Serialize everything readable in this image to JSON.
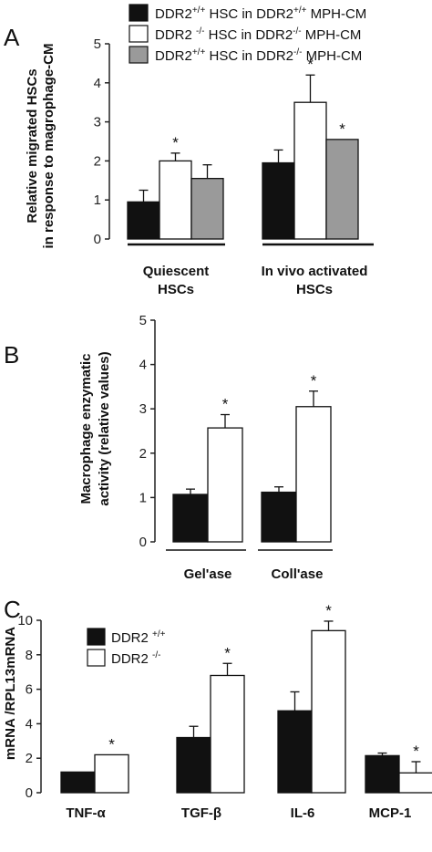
{
  "panels": {
    "A": "A",
    "B": "B",
    "C": "C"
  },
  "chart_data": [
    {
      "type": "bar",
      "panel": "A",
      "ylabel_line1": "Relative migrated HSCs",
      "ylabel_line2": "in response to magrophage-CM",
      "ylim": [
        0,
        5
      ],
      "yticks": [
        "0",
        "1",
        "2",
        "3",
        "4",
        "5"
      ],
      "groups": [
        {
          "label_line1": "Quiescent",
          "label_line2": "HSCs"
        },
        {
          "label_line1": "In vivo activated",
          "label_line2": "HSCs"
        }
      ],
      "series": [
        {
          "name_main": "DDR2",
          "name_sup": "+/+",
          "name_rest": " HSC in DDR2",
          "name_sup2": "+/+",
          "name_end": " MPH-CM",
          "color": "#111111",
          "values": [
            0.95,
            1.95
          ],
          "errors": [
            0.3,
            0.33
          ],
          "stars": [
            "",
            ""
          ]
        },
        {
          "name_main": "DDR2 ",
          "name_sup": "-/-",
          "name_rest": " HSC in DDR2",
          "name_sup2": "-/-",
          "name_end": " MPH-CM",
          "color": "#ffffff",
          "values": [
            2.0,
            3.5
          ],
          "errors": [
            0.2,
            0.7
          ],
          "stars": [
            "*",
            "*"
          ]
        },
        {
          "name_main": "DDR2",
          "name_sup": "+/+",
          "name_rest": " HSC in DDR2",
          "name_sup2": "-/-",
          "name_end": " MPH-CM",
          "color": "#9a9a9a",
          "values": [
            1.55,
            2.55
          ],
          "errors": [
            0.35,
            0.0
          ],
          "stars": [
            "",
            "*"
          ]
        }
      ]
    },
    {
      "type": "bar",
      "panel": "B",
      "ylabel_line1": "Macrophage enzymatic",
      "ylabel_line2": "activity (relative values)",
      "ylim": [
        0,
        5
      ],
      "yticks": [
        "0",
        "1",
        "2",
        "3",
        "4",
        "5"
      ],
      "categories": [
        "Gel'ase",
        "Coll'ase"
      ],
      "series": [
        {
          "color": "#111111",
          "values": [
            1.07,
            1.12
          ],
          "errors": [
            0.12,
            0.12
          ],
          "stars": [
            "",
            ""
          ]
        },
        {
          "color": "#ffffff",
          "values": [
            2.57,
            3.05
          ],
          "errors": [
            0.3,
            0.35
          ],
          "stars": [
            "*",
            "*"
          ]
        }
      ]
    },
    {
      "type": "bar",
      "panel": "C",
      "ylabel": "mRNA /RPL13mRNA",
      "ylim": [
        0,
        10
      ],
      "yticks": [
        "0",
        "2",
        "4",
        "6",
        "8",
        "10"
      ],
      "categories": [
        "TNF-α",
        "TGF-β",
        "IL-6",
        "MCP-1"
      ],
      "series": [
        {
          "name_main": "DDR2 ",
          "name_sup": "+/+",
          "color": "#111111",
          "values": [
            1.2,
            3.2,
            4.75,
            2.15
          ],
          "errors": [
            0.0,
            0.65,
            1.1,
            0.15
          ],
          "stars": [
            "",
            "",
            "",
            ""
          ]
        },
        {
          "name_main": "DDR2 ",
          "name_sup": "-/-",
          "color": "#ffffff",
          "values": [
            2.2,
            6.8,
            9.4,
            1.15
          ],
          "errors": [
            0.0,
            0.7,
            0.55,
            0.65
          ],
          "stars": [
            "*",
            "*",
            "*",
            "*"
          ]
        }
      ]
    }
  ]
}
